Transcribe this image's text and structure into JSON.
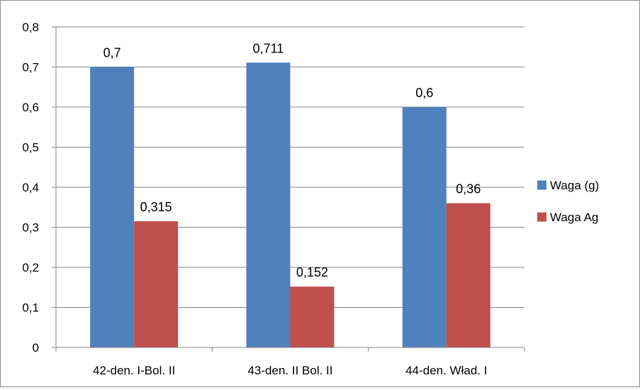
{
  "chart_data": {
    "type": "bar",
    "title": "",
    "xlabel": "",
    "ylabel": "",
    "categories": [
      "42-den. I-Bol. II",
      "43-den. II Bol. II",
      "44-den. Wład. I"
    ],
    "series": [
      {
        "name": "Waga (g)",
        "values": [
          0.7,
          0.711,
          0.6
        ],
        "labels": [
          "0,7",
          "0,711",
          "0,6"
        ],
        "color": "#4F81BD"
      },
      {
        "name": "Waga Ag",
        "values": [
          0.315,
          0.152,
          0.36
        ],
        "labels": [
          "0,315",
          "0,152",
          "0,36"
        ],
        "color": "#C0504D"
      }
    ],
    "ylim": [
      0,
      0.8
    ],
    "yticks": [
      0,
      0.1,
      0.2,
      0.3,
      0.4,
      0.5,
      0.6,
      0.7,
      0.8
    ],
    "ytick_labels": [
      "0",
      "0,1",
      "0,2",
      "0,3",
      "0,4",
      "0,5",
      "0,6",
      "0,7",
      "0,8"
    ],
    "grid": true,
    "legend_position": "right",
    "gridline_color": "#868686"
  }
}
